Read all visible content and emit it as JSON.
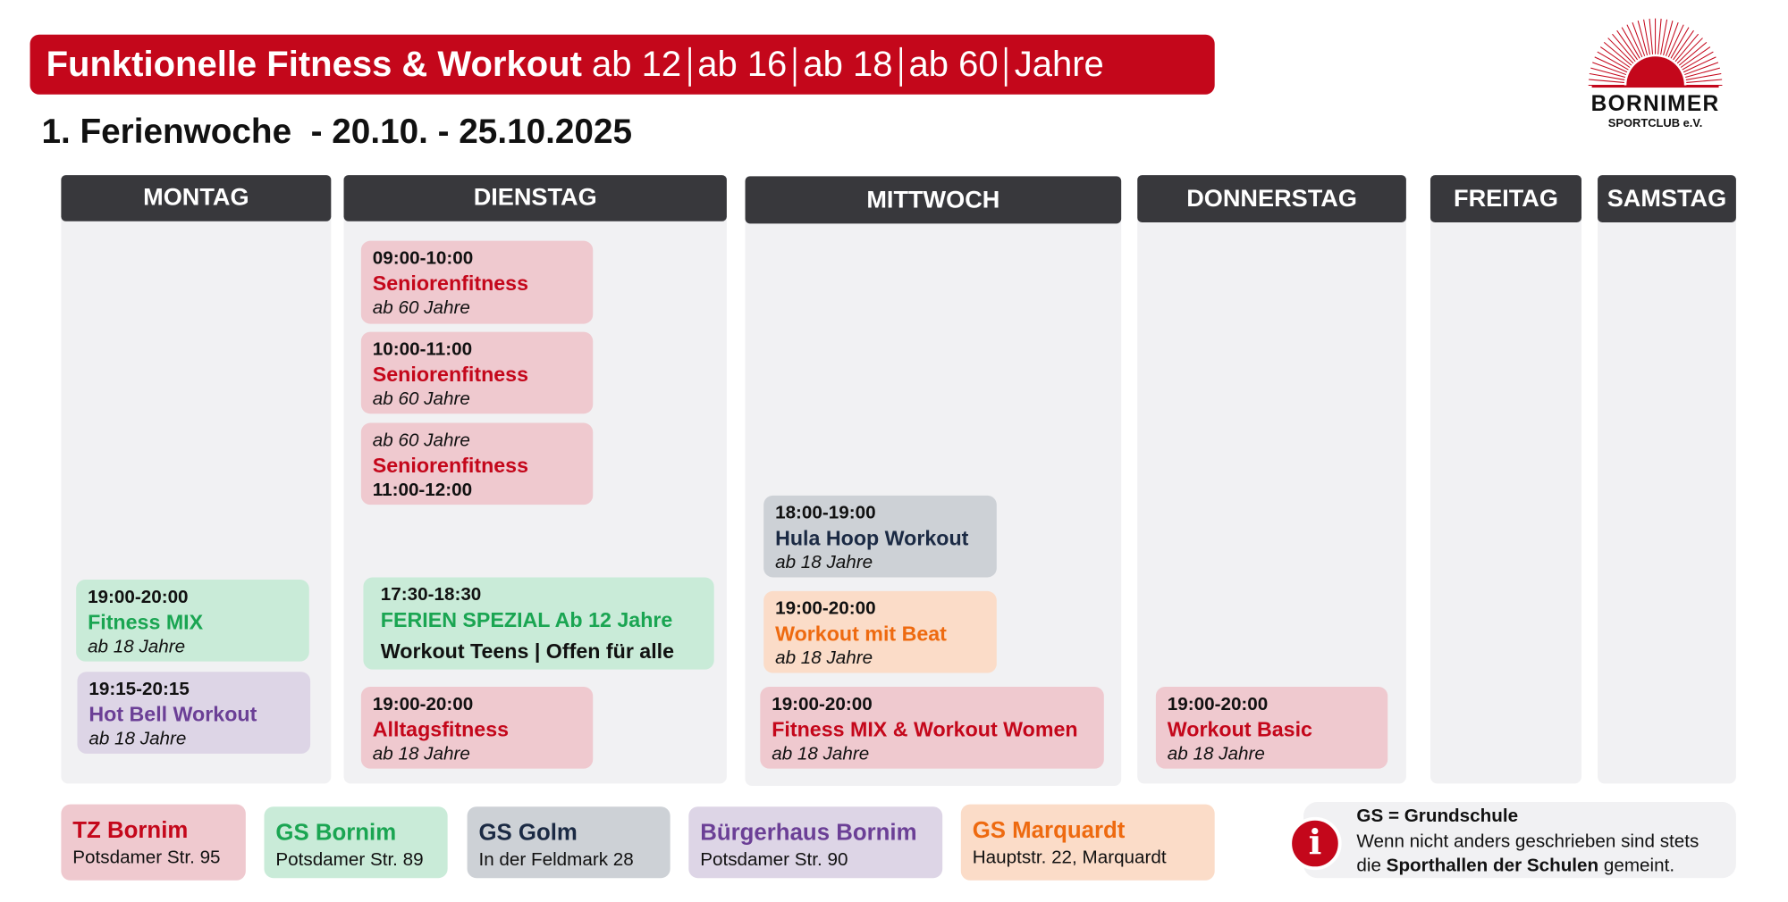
{
  "header": {
    "title_bold": "Funktionelle Fitness & Workout",
    "age_groups": [
      "ab 12",
      "ab 16",
      "ab 18",
      "ab 60",
      "Jahre"
    ],
    "subtitle": "1. Ferienwoche  - 20.10. - 25.10.2025"
  },
  "logo": {
    "name": "BORNIMER",
    "sub": "SPORTCLUB e.V."
  },
  "colors": {
    "brand_red": "#c4071b",
    "header_dark": "#38383c",
    "pink": "#efc9cf",
    "green": "#c9ebd8",
    "grey": "#cdd1d6",
    "lavender": "#ddd5e6",
    "peach": "#fbdcc8"
  },
  "days": [
    "MONTAG",
    "DIENSTAG",
    "MITTWOCH",
    "DONNERSTAG",
    "FREITAG",
    "SAMSTAG"
  ],
  "events": {
    "mon": [
      {
        "time": "19:00-20:00",
        "name": "Fitness MIX",
        "age": "ab 18 Jahre"
      },
      {
        "time": "19:15-20:15",
        "name": "Hot Bell Workout",
        "age": "ab 18 Jahre"
      }
    ],
    "tue": [
      {
        "time": "09:00-10:00",
        "name": "Seniorenfitness",
        "age": "ab 60 Jahre"
      },
      {
        "time": "10:00-11:00",
        "name": "Seniorenfitness",
        "age": "ab 60 Jahre"
      },
      {
        "time": "11:00-12:00",
        "name": "Seniorenfitness",
        "age": "ab 60 Jahre"
      },
      {
        "time": "17:30-18:30",
        "name": "FERIEN SPEZIAL Ab 12 Jahre",
        "age": "Workout Teens | Offen für alle"
      },
      {
        "time": "19:00-20:00",
        "name": "Alltagsfitness",
        "age": "ab 18 Jahre"
      }
    ],
    "wed": [
      {
        "time": "18:00-19:00",
        "name": "Hula Hoop Workout",
        "age": "ab 18 Jahre"
      },
      {
        "time": "19:00-20:00",
        "name": "Workout mit Beat",
        "age": "ab 18 Jahre"
      },
      {
        "time": "19:00-20:00",
        "name": "Fitness MIX & Workout Women",
        "age": "ab 18 Jahre"
      }
    ],
    "thu": [
      {
        "time": "19:00-20:00",
        "name": "Workout Basic",
        "age": "ab 18 Jahre"
      }
    ]
  },
  "locations": [
    {
      "name": "TZ Bornim",
      "address": "Potsdamer Str. 95"
    },
    {
      "name": "GS Bornim",
      "address": "Potsdamer Str. 89"
    },
    {
      "name": "GS Golm",
      "address": "In der Feldmark 28"
    },
    {
      "name": "Bürgerhaus Bornim",
      "address": "Potsdamer Str. 90"
    },
    {
      "name": "GS Marquardt",
      "address": "Hauptstr. 22, Marquardt"
    }
  ],
  "info": {
    "icon": "info-icon",
    "title": "GS = Grundschule",
    "line1": "Wenn nicht anders geschrieben sind stets",
    "line2_pre": "die ",
    "line2_bold": "Sporthallen der Schulen",
    "line2_post": " gemeint."
  }
}
